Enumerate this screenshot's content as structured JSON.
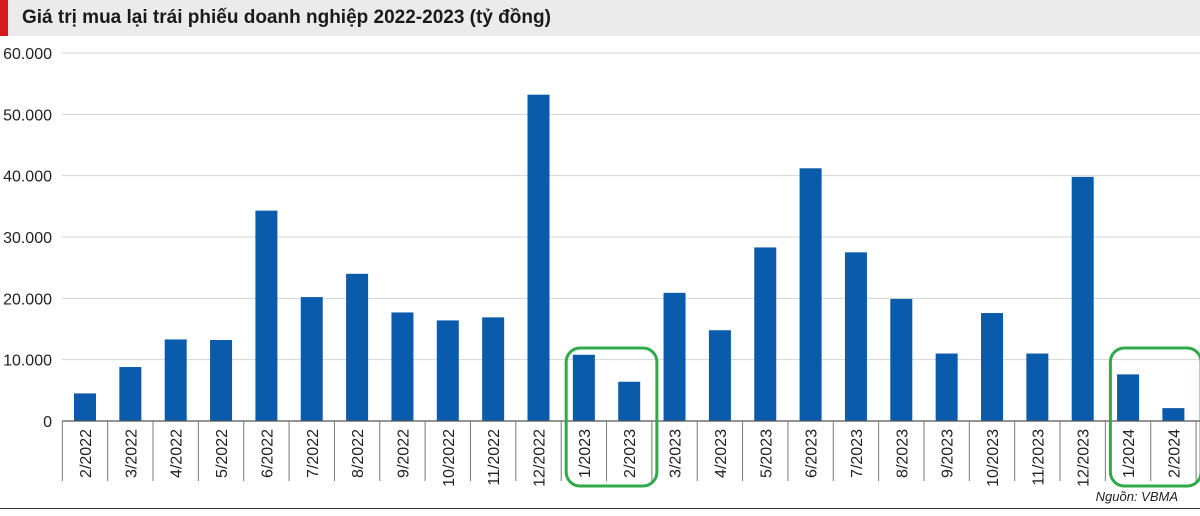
{
  "chart_data": {
    "type": "bar",
    "title": "Giá trị mua lại trái phiếu doanh nghiệp 2022-2023 (tỷ đồng)",
    "categories": [
      "2/2022",
      "3/2022",
      "4/2022",
      "5/2022",
      "6/2022",
      "7/2022",
      "8/2022",
      "9/2022",
      "10/2022",
      "11/2022",
      "12/2022",
      "1/2023",
      "2/2023",
      "3/2023",
      "4/2023",
      "5/2023",
      "6/2023",
      "7/2023",
      "8/2023",
      "9/2023",
      "10/2023",
      "11/2023",
      "12/2023",
      "1/2024",
      "2/2024"
    ],
    "values": [
      4500,
      8800,
      13300,
      13200,
      34300,
      20200,
      24000,
      17700,
      16400,
      16900,
      53200,
      10800,
      6400,
      20900,
      14800,
      28300,
      41200,
      27500,
      19900,
      11000,
      17600,
      11000,
      39800,
      7600,
      2100
    ],
    "ylim": [
      0,
      60000
    ],
    "yticks": [
      "0",
      "10.000",
      "20.000",
      "30.000",
      "40.000",
      "50.000",
      "60.000"
    ],
    "ytick_values": [
      0,
      10000,
      20000,
      30000,
      40000,
      50000,
      60000
    ],
    "grid": true,
    "highlighted_groups": [
      [
        "1/2023",
        "2/2023"
      ],
      [
        "1/2024",
        "2/2024"
      ]
    ],
    "colors": {
      "bar": "#0a5bab",
      "highlight": "#2eaa4a",
      "accent": "#d7191c",
      "grid": "#d4d4d4"
    },
    "source": "Nguồn: VBMA"
  }
}
